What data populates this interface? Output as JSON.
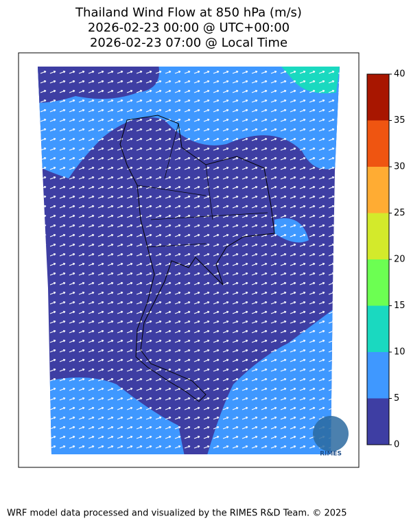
{
  "title": [
    "Thailand Wind Flow at 850 hPa (m/s)",
    "2026-02-23 00:00 @ UTC+00:00",
    "2026-02-23 07:00 @ Local Time"
  ],
  "colorbar": {
    "ticks": [
      0,
      5,
      10,
      15,
      20,
      25,
      30,
      35,
      40
    ],
    "colors": [
      "#3e3ea3",
      "#3f98ff",
      "#1ad9c0",
      "#6cff52",
      "#d3ea2b",
      "#ffac33",
      "#ef5511",
      "#a81600"
    ]
  },
  "logo": "RIMES",
  "footer": "WRF model data processed and visualized by the RIMES R&D Team. © 2025"
}
